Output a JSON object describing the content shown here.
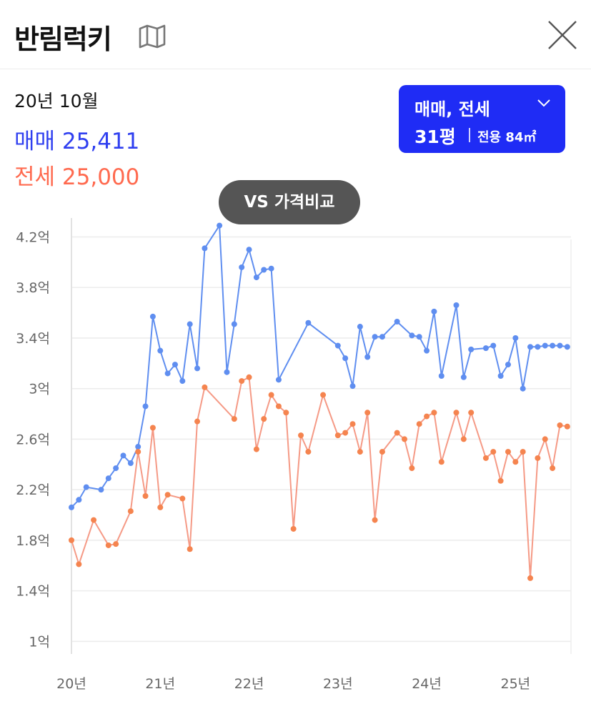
{
  "header": {
    "title": "반림럭키"
  },
  "info": {
    "date": "20년 10월",
    "sale_label": "매매",
    "sale_value": "25,411",
    "rent_label": "전세",
    "rent_value": "25,000"
  },
  "selector": {
    "type_label": "매매, 전세",
    "size_label": "31평",
    "area_label": "전용 84㎡"
  },
  "compare_button": {
    "label": "VS 가격비교"
  },
  "colors": {
    "sale": "#5f8ef0",
    "rent": "#f59a86",
    "rent_point": "#f5844f",
    "selector_bg": "#1f2cf5"
  },
  "chart_data": {
    "type": "line",
    "x_ticks": [
      {
        "x": 0,
        "label": "20년"
      },
      {
        "x": 12,
        "label": "21년"
      },
      {
        "x": 24,
        "label": "22년"
      },
      {
        "x": 36,
        "label": "23년"
      },
      {
        "x": 48,
        "label": "24년"
      },
      {
        "x": 60,
        "label": "25년"
      }
    ],
    "y_ticks": [
      {
        "value": 1.0,
        "label": "1억"
      },
      {
        "value": 1.4,
        "label": "1.4억"
      },
      {
        "value": 1.8,
        "label": "1.8억"
      },
      {
        "value": 2.2,
        "label": "2.2억"
      },
      {
        "value": 2.6,
        "label": "2.6억"
      },
      {
        "value": 3.0,
        "label": "3억"
      },
      {
        "value": 3.4,
        "label": "3.4억"
      },
      {
        "value": 3.8,
        "label": "3.8억"
      },
      {
        "value": 4.2,
        "label": "4.2억"
      }
    ],
    "xlim": [
      0,
      67.5
    ],
    "ylim": [
      0.9,
      4.35
    ],
    "grid": true,
    "series": [
      {
        "key": "sale",
        "x": [
          0,
          1,
          2,
          4,
          5,
          6,
          7,
          8,
          9,
          10,
          11,
          12,
          13,
          14,
          15,
          16,
          17,
          18,
          20,
          21,
          22,
          23,
          24,
          25,
          26,
          27,
          28,
          32,
          36,
          37,
          38,
          39,
          40,
          41,
          42,
          44,
          46,
          47,
          48,
          49,
          50,
          52,
          53,
          54,
          56,
          57,
          58,
          59,
          60,
          61,
          62,
          63,
          64,
          65,
          66,
          67
        ],
        "values": [
          2.06,
          2.12,
          2.22,
          2.2,
          2.29,
          2.37,
          2.47,
          2.41,
          2.54,
          2.86,
          3.57,
          3.3,
          3.12,
          3.19,
          3.06,
          3.51,
          3.16,
          4.11,
          4.29,
          3.13,
          3.51,
          3.96,
          4.1,
          3.88,
          3.94,
          3.95,
          3.07,
          3.52,
          3.34,
          3.24,
          3.02,
          3.49,
          3.25,
          3.41,
          3.41,
          3.53,
          3.42,
          3.41,
          3.3,
          3.61,
          3.1,
          3.66,
          3.09,
          3.31,
          3.32,
          3.34,
          3.1,
          3.19,
          3.4,
          3.0,
          3.33,
          3.33,
          3.34,
          3.34,
          3.34,
          3.33
        ]
      },
      {
        "key": "rent",
        "x": [
          0,
          1,
          3,
          5,
          6,
          8,
          9,
          10,
          11,
          12,
          13,
          15,
          16,
          17,
          18,
          22,
          23,
          24,
          25,
          26,
          27,
          28,
          29,
          30,
          31,
          32,
          34,
          36,
          37,
          38,
          39,
          40,
          41,
          42,
          44,
          45,
          46,
          47,
          48,
          49,
          50,
          52,
          53,
          54,
          56,
          57,
          58,
          59,
          60,
          61,
          62,
          63,
          64,
          65,
          66,
          67
        ],
        "values": [
          1.8,
          1.61,
          1.96,
          1.76,
          1.77,
          2.03,
          2.5,
          2.15,
          2.69,
          2.06,
          2.16,
          2.13,
          1.73,
          2.74,
          3.01,
          2.76,
          3.06,
          3.09,
          2.52,
          2.76,
          2.95,
          2.86,
          2.81,
          1.89,
          2.63,
          2.5,
          2.95,
          2.63,
          2.65,
          2.72,
          2.5,
          2.81,
          1.96,
          2.5,
          2.65,
          2.6,
          2.37,
          2.72,
          2.78,
          2.81,
          2.42,
          2.81,
          2.6,
          2.81,
          2.45,
          2.5,
          2.27,
          2.5,
          2.42,
          2.5,
          1.5,
          2.45,
          2.6,
          2.37,
          2.71,
          2.7
        ]
      }
    ]
  }
}
